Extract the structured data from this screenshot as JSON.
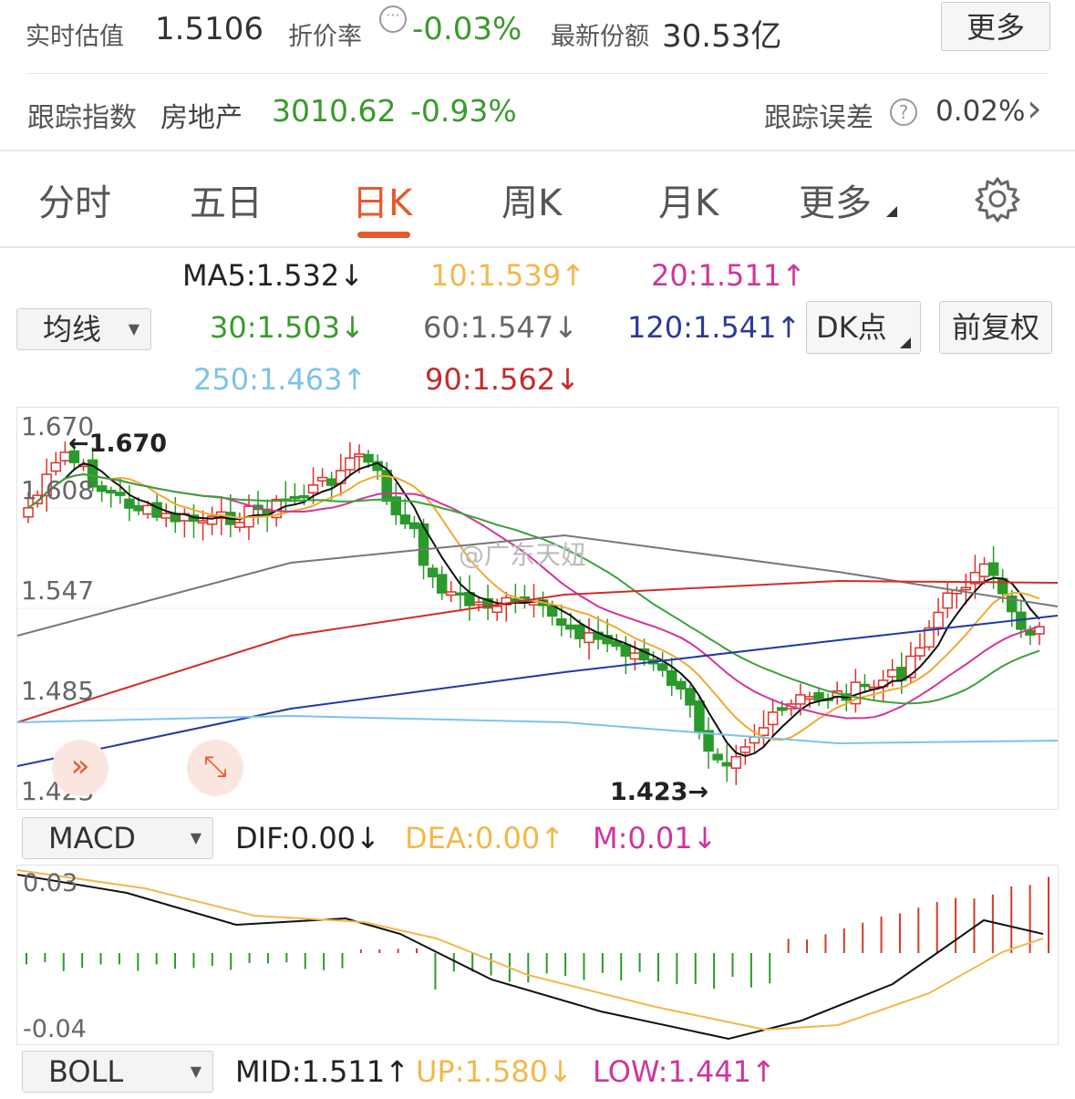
{
  "header": {
    "realtime_label": "实时估值",
    "realtime_value": "1.5106",
    "discount_label": "折价率",
    "discount_icon": "chat-bubble-icon",
    "discount_value": "-0.03%",
    "shares_label": "最新份额",
    "shares_value": "30.53亿",
    "more_button": "更多"
  },
  "tracking": {
    "index_label": "跟踪指数",
    "index_name": "房地产",
    "index_value": "3010.62",
    "index_change": "-0.93%",
    "error_label": "跟踪误差",
    "error_help": "?",
    "error_value": "0.02%",
    "chevron": "›"
  },
  "tabs": [
    "分时",
    "五日",
    "日K",
    "周K",
    "月K",
    "更多"
  ],
  "active_tab": "日K",
  "ma": {
    "selector": "均线",
    "ma5": "MA5:1.532",
    "ma5_arrow": "↓",
    "ma10": "10:1.539",
    "ma10_arrow": "↑",
    "ma20": "20:1.511",
    "ma20_arrow": "↑",
    "ma30": "30:1.503",
    "ma30_arrow": "↓",
    "ma60": "60:1.547",
    "ma60_arrow": "↓",
    "ma120": "120:1.541",
    "ma120_arrow": "↑",
    "ma250": "250:1.463",
    "ma250_arrow": "↑",
    "ma90": "90:1.562",
    "ma90_arrow": "↓",
    "dk_button": "DK点",
    "adjust_button": "前复权"
  },
  "main_chart": {
    "y_labels": [
      "1.670",
      "1.608",
      "1.547",
      "1.485",
      "1.423"
    ],
    "high_marker": "1.670",
    "low_marker": "1.423",
    "watermark": "@广东天妞",
    "colors": {
      "up": "#e0302a",
      "down": "#2a9a2a",
      "ma5": "#111111",
      "ma10": "#f2a830",
      "ma20": "#d2359a",
      "ma30": "#3aa23a",
      "ma60": "#777777",
      "ma90": "#d42a2a",
      "ma120": "#1f3aa6",
      "ma250": "#7cc3ea"
    }
  },
  "macd": {
    "selector": "MACD",
    "dif": "DIF:0.00",
    "dif_arrow": "↓",
    "dea": "DEA:0.00",
    "dea_arrow": "↑",
    "m": "M:0.01",
    "m_arrow": "↓",
    "y_top": "0.03",
    "y_bottom": "-0.04"
  },
  "boll": {
    "selector": "BOLL",
    "mid": "MID:1.511",
    "mid_arrow": "↑",
    "up": "UP:1.580",
    "up_arrow": "↓",
    "low": "LOW:1.441",
    "low_arrow": "↑"
  },
  "colors": {
    "accent": "#e8592c",
    "green": "#3a9a2c",
    "red": "#d23b2b",
    "orange": "#f2b84a",
    "magenta": "#d0359b",
    "blue": "#2a3a9a",
    "lightblue": "#7cc3ea"
  }
}
